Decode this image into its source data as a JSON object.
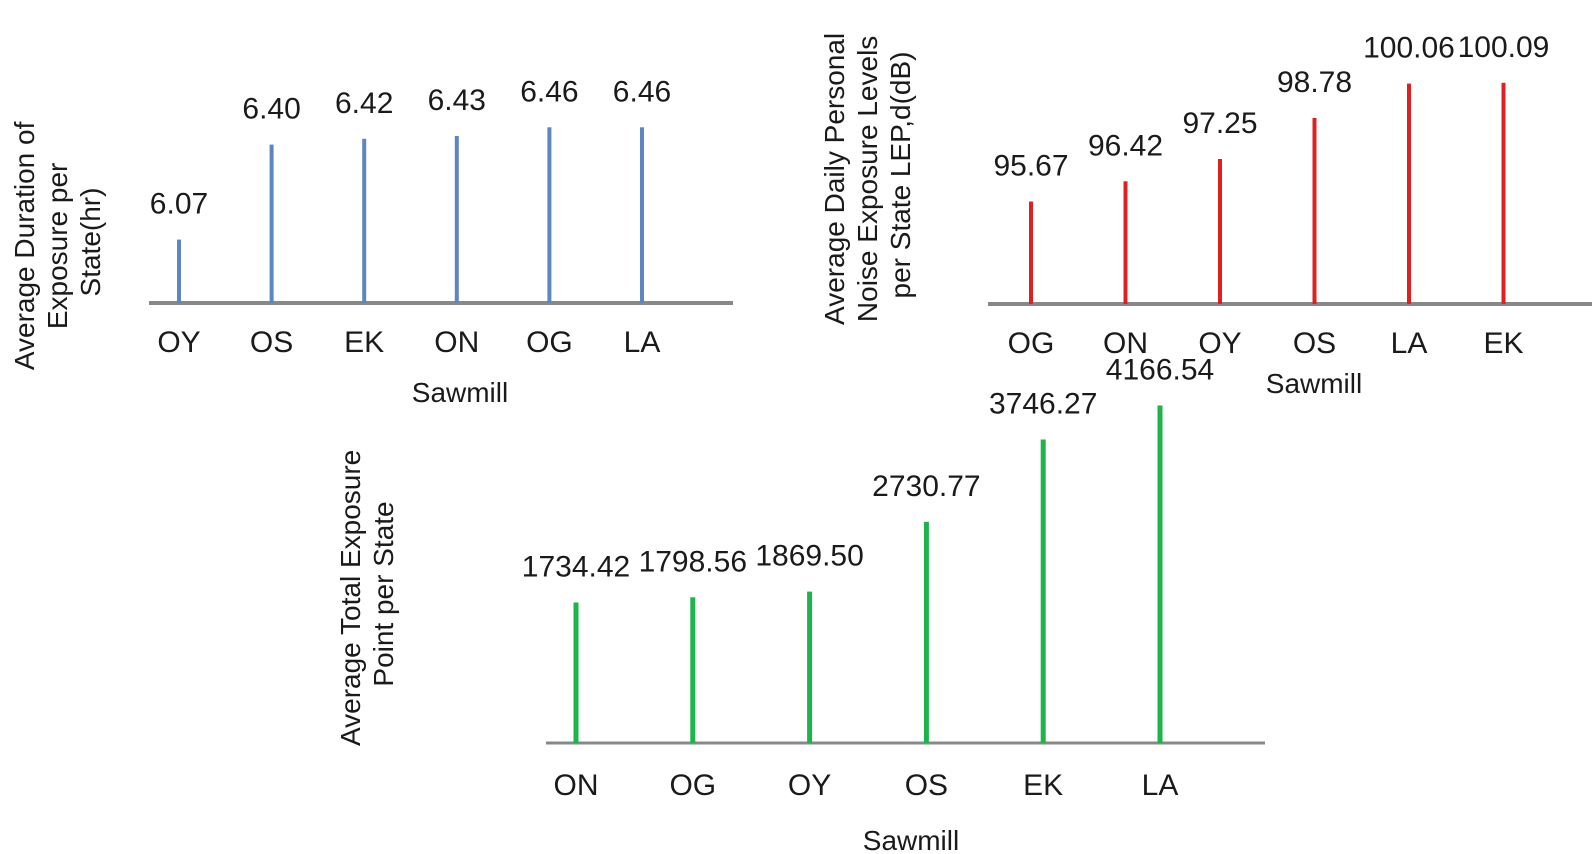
{
  "chart_data": [
    {
      "type": "bar",
      "categories": [
        "OY",
        "OS",
        "EK",
        "ON",
        "OG",
        "LA"
      ],
      "values": [
        6.07,
        6.4,
        6.42,
        6.43,
        6.46,
        6.46
      ],
      "value_labels": [
        "6.07",
        "6.40",
        "6.42",
        "6.43",
        "6.46",
        "6.46"
      ],
      "xlabel": "Sawmill",
      "ylabel_lines": [
        "Average Duration of",
        "Exposure  per",
        "State(hr)"
      ],
      "ylim": [
        5.85,
        6.6
      ],
      "color": "#5b86c0"
    },
    {
      "type": "bar",
      "categories": [
        "OG",
        "ON",
        "OY",
        "OS",
        "LA",
        "EK"
      ],
      "values": [
        95.67,
        96.42,
        97.25,
        98.78,
        100.06,
        100.09
      ],
      "value_labels": [
        "95.67",
        "96.42",
        "97.25",
        "98.78",
        "100.06",
        "100.09"
      ],
      "xlabel": "Sawmill",
      "ylabel_lines": [
        "Average Daily Personal",
        "Noise Exposure Levels",
        "per State LEP,d(dB)"
      ],
      "ylim": [
        91.85,
        101.2
      ],
      "color": "#e02020"
    },
    {
      "type": "bar",
      "categories": [
        "ON",
        "OG",
        "OY",
        "OS",
        "EK",
        "LA"
      ],
      "values": [
        1734.42,
        1798.56,
        1869.5,
        2730.77,
        3746.27,
        4166.54
      ],
      "value_labels": [
        "1734.42",
        "1798.56",
        "1869.50",
        "2730.77",
        "3746.27",
        "4166.54"
      ],
      "xlabel": "Sawmill",
      "ylabel_lines": [
        "Average Total Exposure",
        "Point per State"
      ],
      "ylim": [
        0,
        4950
      ],
      "color": "#1db54a"
    }
  ]
}
